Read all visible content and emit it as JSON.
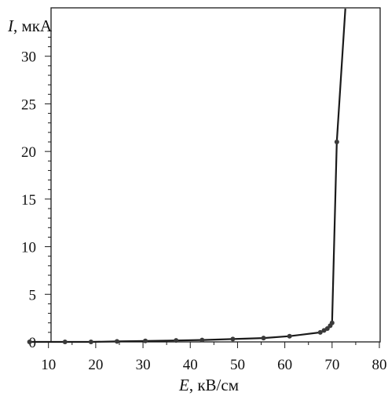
{
  "chart_data": {
    "type": "line",
    "title": "",
    "ylabel_var": "I",
    "ylabel_unit": ", мкА",
    "xlabel_var": "E",
    "xlabel_unit": ", кВ/см",
    "xlim": [
      0,
      80
    ],
    "ylim": [
      0,
      35
    ],
    "x_ticks": [
      10,
      20,
      30,
      40,
      50,
      60,
      70,
      80
    ],
    "y_ticks": [
      0,
      5,
      10,
      15,
      20,
      25,
      30
    ],
    "grid": false,
    "colors": {
      "line": "#1a1a1a",
      "marker": "#3a3a3a"
    },
    "series": [
      {
        "x": [
          6,
          13.5,
          19,
          24.5,
          30.5,
          37,
          42.5,
          49,
          55.5,
          61,
          67.5,
          68.3,
          69,
          69.6,
          70,
          71,
          72.8
        ],
        "y": [
          0,
          0,
          0,
          0.05,
          0.1,
          0.15,
          0.2,
          0.3,
          0.4,
          0.6,
          1.0,
          1.2,
          1.4,
          1.7,
          2.0,
          21.0,
          35.0
        ]
      }
    ]
  }
}
